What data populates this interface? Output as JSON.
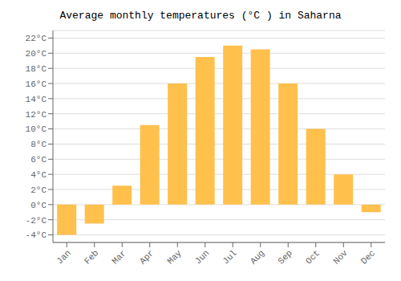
{
  "chart_data": {
    "type": "bar",
    "title": "Average monthly temperatures (°C ) in Saharna",
    "categories": [
      "Jan",
      "Feb",
      "Mar",
      "Apr",
      "May",
      "Jun",
      "Jul",
      "Aug",
      "Sep",
      "Oct",
      "Nov",
      "Dec"
    ],
    "values": [
      -4.0,
      -2.5,
      2.5,
      10.5,
      16.0,
      19.5,
      21.0,
      20.5,
      16.0,
      10.0,
      4.0,
      -1.0
    ],
    "color": "#FFC04C",
    "ylim": [
      -5,
      23
    ],
    "yticks": [
      {
        "value": -4,
        "label": "-4°C"
      },
      {
        "value": -2,
        "label": "-2°C"
      },
      {
        "value": 0,
        "label": "0°C"
      },
      {
        "value": 2,
        "label": "2°C"
      },
      {
        "value": 4,
        "label": "4°C"
      },
      {
        "value": 6,
        "label": "6°C"
      },
      {
        "value": 8,
        "label": "8°C"
      },
      {
        "value": 10,
        "label": "10°C"
      },
      {
        "value": 12,
        "label": "12°C"
      },
      {
        "value": 14,
        "label": "14°C"
      },
      {
        "value": 16,
        "label": "16°C"
      },
      {
        "value": 18,
        "label": "18°C"
      },
      {
        "value": 20,
        "label": "20°C"
      },
      {
        "value": 22,
        "label": "22°C"
      }
    ],
    "grid": true
  }
}
